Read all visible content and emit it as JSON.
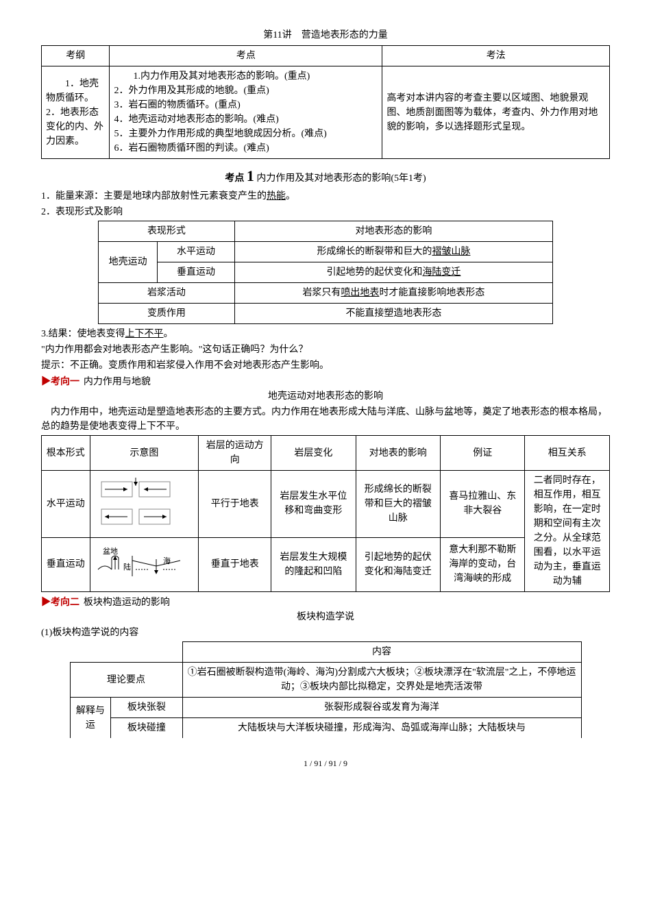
{
  "title": "第11讲　营造地表形态的力量",
  "table1": {
    "headers": [
      "考纲",
      "考点",
      "考法"
    ],
    "c1": "1．地壳物质循环。\n2．地表形态变化的内、外力因素。",
    "c2": "1.内力作用及其对地表形态的影响。(重点)\n2．外力作用及其形成的地貌。(重点)\n3．岩石圈的物质循环。(重点)\n4．地壳运动对地表形态的影响。(难点)\n5．主要外力作用形成的典型地貌成因分析。(难点)\n6．岩石圈物质循环图的判读。(难点)",
    "c3": "高考对本讲内容的考查主要以区域图、地貌景观图、地质剖面图等为载体，考查内、外力作用对地貌的影响，多以选择题形式呈现。"
  },
  "kaodian1": {
    "label": "考点",
    "num": "1",
    "text": "内力作用及其对地表形态的影响(5年1考)"
  },
  "line1": "1．能量来源：主要是地球内部放射性元素衰变产生的",
  "line1u": "热能",
  "line1end": "。",
  "line2": "2．表现形式及影响",
  "table2": {
    "h1": "表现形式",
    "h2": "对地表形态的影响",
    "r1a": "地壳运动",
    "r1b": "水平运动",
    "r1c_pre": "形成绵长的断裂带和巨大的",
    "r1c_u": "褶皱山脉",
    "r2b": "垂直运动",
    "r2c_pre": "引起地势的起伏变化和",
    "r2c_u": "海陆变迁",
    "r3a": "岩浆活动",
    "r3c_pre": "岩浆只有",
    "r3c_u": "喷出地表",
    "r3c_post": "时才能直接影响地表形态",
    "r4a": "变质作用",
    "r4c": "不能直接塑造地表形态"
  },
  "line3_pre": "3.结果：使地表变得",
  "line3_u": "上下不平",
  "line3_end": "。",
  "line4": "\"内力作用都会对地表形态产生影响。\"这句话正确吗？为什么？",
  "line5": "提示：不正确。变质作用和岩浆侵入作用不会对地表形态产生影响。",
  "kv1_label": "▶考向一",
  "kv1_text": "内力作用与地貌",
  "sub1": "地壳运动对地表形态的影响",
  "para1": "内力作用中，地壳运动是塑造地表形态的主要方式。内力作用在地表形成大陆与洋底、山脉与盆地等，奠定了地表形态的根本格局，总的趋势是使地表变得上下不平。",
  "table3": {
    "headers": [
      "根本形式",
      "示意图",
      "岩层的运动方向",
      "岩层变化",
      "对地表的影响",
      "例证",
      "相互关系"
    ],
    "r1": {
      "c1": "水平运动",
      "c3": "平行于地表",
      "c4": "岩层发生水平位移和弯曲变形",
      "c5": "形成绵长的断裂带和巨大的褶皱山脉",
      "c6": "喜马拉雅山、东非大裂谷",
      "c7": "二者同时存在，相互作用，相互影响，在一定时期和空间有主次之分。从全球范围看，以水平运动为主，垂直运动为辅"
    },
    "r2": {
      "c1": "垂直运动",
      "svg_labels": {
        "basin": "盆地",
        "land": "陆",
        "sea": "海"
      },
      "c3": "垂直于地表",
      "c4": "岩层发生大规模的隆起和凹陷",
      "c5": "引起地势的起伏变化和海陆变迁",
      "c6": "意大利那不勒斯海岸的变动，台湾海峡的形成"
    }
  },
  "kv2_label": "▶考向二",
  "kv2_text": "板块构造运动的影响",
  "sub2": "板块构造学说",
  "line6": "(1)板块构造学说的内容",
  "table4": {
    "h2": "内容",
    "r1a": "理论要点",
    "r1c": "①岩石圈被断裂构造带(海岭、海沟)分割成六大板块；②板块漂浮在\"软流层\"之上，不停地运动；③板块内部比拟稳定，交界处是地壳活泼带",
    "r2a": "解释与运",
    "r2b": "板块张裂",
    "r2c": "张裂形成裂谷或发育为海洋",
    "r3b": "板块碰撞",
    "r3c": "大陆板块与大洋板块碰撞，形成海沟、岛弧或海岸山脉；大陆板块与"
  },
  "pagenum": "1 / 91 / 91 / 9"
}
